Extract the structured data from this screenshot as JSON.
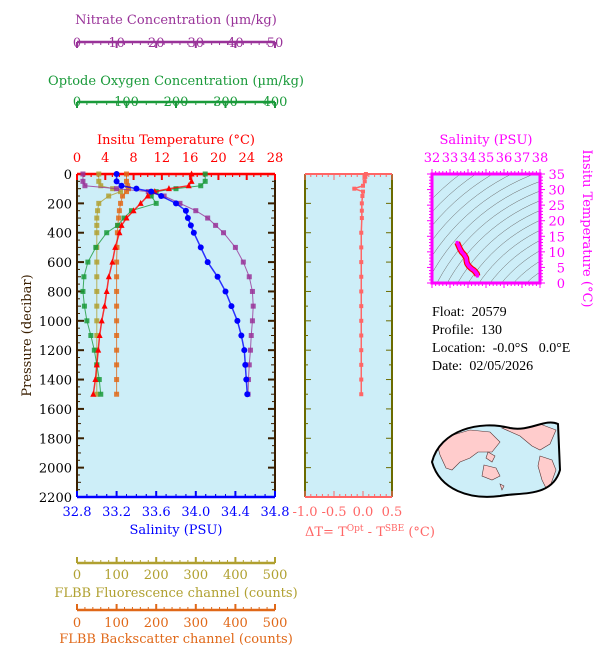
{
  "chart_data": [
    {
      "type": "line",
      "panel": "profile",
      "ylabel": "Pressure (decibar)",
      "ylim": [
        0,
        2200
      ],
      "y_reversed": true,
      "yticks": [
        0,
        200,
        400,
        600,
        800,
        1000,
        1200,
        1400,
        1600,
        1800,
        2000,
        2200
      ],
      "axes": [
        {
          "key": "nitrate",
          "label": "Nitrate Concentration (µm/kg)",
          "range": [
            0,
            50
          ],
          "ticks": [
            0,
            10,
            20,
            30,
            40,
            50
          ],
          "color": "#993399",
          "position": "top"
        },
        {
          "key": "oxygen",
          "label": "Optode Oxygen Concentration (µm/kg)",
          "range": [
            0,
            400
          ],
          "ticks": [
            0,
            100,
            200,
            300,
            400
          ],
          "color": "#1a9a3a",
          "position": "top"
        },
        {
          "key": "temperature",
          "label": "Insitu Temperature (°C)",
          "range": [
            0,
            28
          ],
          "ticks": [
            0,
            4,
            8,
            12,
            16,
            20,
            24,
            28
          ],
          "color": "#ff0000",
          "position": "top"
        },
        {
          "key": "salinity",
          "label": "Salinity (PSU)",
          "range": [
            32.8,
            34.8
          ],
          "ticks": [
            "32.8",
            "33.2",
            "33.6",
            "34.0",
            "34.4",
            "34.8"
          ],
          "color": "#0000ff",
          "position": "bottom"
        },
        {
          "key": "fluorescence",
          "label": "FLBB Fluorescence channel (counts)",
          "range": [
            0,
            500
          ],
          "ticks": [
            0,
            100,
            200,
            300,
            400,
            500
          ],
          "color": "#b0a030",
          "position": "bottom"
        },
        {
          "key": "backscatter",
          "label": "FLBB Backscatter channel (counts)",
          "range": [
            0,
            500
          ],
          "ticks": [
            0,
            100,
            200,
            300,
            400,
            500
          ],
          "color": "#e06818",
          "position": "bottom"
        }
      ],
      "pressure": [
        0,
        50,
        80,
        100,
        120,
        150,
        200,
        250,
        300,
        350,
        400,
        500,
        600,
        700,
        800,
        900,
        1000,
        1100,
        1200,
        1300,
        1400,
        1500
      ],
      "series": {
        "temperature": [
          16.2,
          16.2,
          15.8,
          13,
          11,
          10,
          9,
          8,
          7,
          6.3,
          6,
          5.4,
          5,
          4.5,
          4.2,
          3.9,
          3.5,
          3.2,
          3,
          2.8,
          2.6,
          2.3
        ],
        "salinity": [
          33.2,
          33.2,
          33.25,
          33.4,
          33.55,
          33.65,
          33.8,
          33.9,
          33.92,
          33.95,
          33.98,
          34.05,
          34.12,
          34.22,
          34.3,
          34.36,
          34.42,
          34.46,
          34.49,
          34.5,
          34.51,
          34.52
        ],
        "nitrate": [
          1.5,
          1.5,
          2,
          10,
          18,
          22,
          26,
          30,
          33,
          35,
          37,
          40,
          42,
          43.5,
          44.3,
          44.5,
          44.3,
          44,
          43.8,
          43.5,
          43.3,
          43.2
        ],
        "oxygen": [
          259,
          259,
          250,
          200,
          160,
          150,
          160,
          110,
          95,
          82,
          60,
          38,
          22,
          14,
          12,
          15,
          20,
          28,
          35,
          40,
          45,
          48
        ],
        "fluorescence": [
          55,
          55,
          60,
          90,
          110,
          80,
          55,
          52,
          50,
          50,
          50,
          50,
          50,
          50,
          50,
          50,
          50,
          50,
          50,
          50,
          50,
          50
        ],
        "backscatter": [
          125,
          125,
          128,
          130,
          125,
          115,
          110,
          107,
          105,
          103,
          102,
          101,
          100,
          100,
          100,
          100,
          100,
          100,
          100,
          100,
          100,
          100
        ]
      },
      "background": "#cdeef8"
    },
    {
      "type": "line",
      "panel": "delta-t",
      "xlabel": "ΔT= T",
      "xlabel_sup1": "Opt",
      "xlabel_mid": " - T",
      "xlabel_sup2": "SBE",
      "xlabel_unit": " (°C)",
      "xlim": [
        -1.0,
        0.5
      ],
      "xticks": [
        "-1.0",
        "-0.5",
        "0.0",
        "0.5"
      ],
      "color": "#ff6666",
      "pressure": [
        0,
        20,
        50,
        80,
        100,
        120,
        150,
        200,
        250,
        300,
        400,
        500,
        600,
        700,
        800,
        900,
        1000,
        1100,
        1200,
        1300,
        1400,
        1500
      ],
      "values": [
        0.05,
        0.04,
        0.03,
        0.0,
        -0.15,
        0.0,
        -0.01,
        -0.02,
        -0.02,
        -0.02,
        -0.03,
        -0.03,
        -0.03,
        -0.03,
        -0.03,
        -0.03,
        -0.03,
        -0.03,
        -0.03,
        -0.03,
        -0.03,
        -0.03
      ]
    },
    {
      "type": "scatter",
      "panel": "ts-diagram",
      "xlabel": "Salinity (PSU)",
      "ylabel": "Insitu Temperature (°C)",
      "xlim": [
        32,
        38
      ],
      "ylim": [
        0,
        35
      ],
      "xticks": [
        32,
        33,
        34,
        35,
        36,
        37,
        38
      ],
      "yticks": [
        0,
        5,
        10,
        15,
        20,
        25,
        30,
        35
      ],
      "color": "#ff00ff",
      "outline_color": "#ff0000",
      "density_contours": true
    }
  ],
  "info": {
    "float": "Float:  20579",
    "profile": "Profile:  130",
    "location": "Location:  -0.0°S   0.0°E",
    "date": "Date:  02/05/2026"
  },
  "map": {
    "ocean_color": "#cdeef8",
    "land_color": "#ffcccc",
    "projection": "pacific-centered"
  }
}
